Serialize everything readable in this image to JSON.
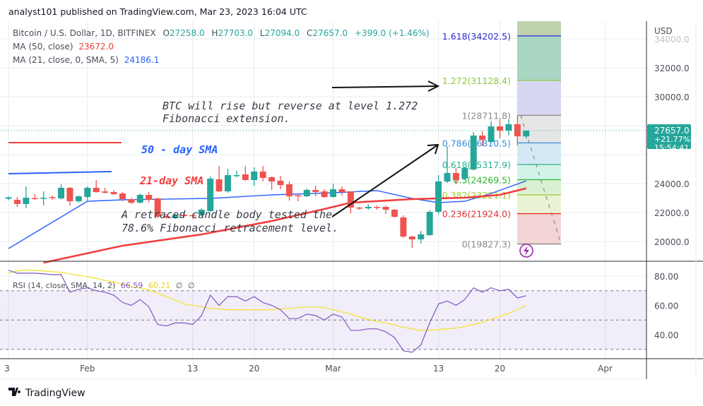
{
  "header": {
    "publisher": "analyst101 published on TradingView.com, Mar 23, 2023 16:04 UTC"
  },
  "legend": {
    "symbol": "Bitcoin / U.S. Dollar, 1D, BITFINEX",
    "o_label": "O",
    "o": "27258.0",
    "h_label": "H",
    "h": "27703.0",
    "l_label": "L",
    "l": "27094.0",
    "c_label": "C",
    "c": "27657.0",
    "change": "+399.0 (+1.46%)",
    "ma50_label": "MA (50, close)",
    "ma50_value": "23672.0",
    "ma21_label": "MA (21, close, 0, SMA, 5)",
    "ma21_value": "24186.1"
  },
  "price_axis": {
    "currency": "USD",
    "ticks": [
      "34000.0",
      "32000.0",
      "30000.0",
      "24000.0",
      "22000.0",
      "20000.0"
    ],
    "tick_values": [
      34000,
      32000,
      30000,
      24000,
      22000,
      20000
    ],
    "last_price": "27657.0",
    "last_change_pct": "+21.77%",
    "countdown": "15:54:41"
  },
  "time_axis": {
    "labels": [
      "3",
      "Feb",
      "13",
      "20",
      "Mar",
      "13",
      "20",
      "Apr"
    ],
    "label_dates": [
      "2023-01-23",
      "2023-02-01",
      "2023-02-13",
      "2023-02-20",
      "2023-03-01",
      "2023-03-13",
      "2023-03-20",
      "2023-04-01"
    ]
  },
  "rsi": {
    "label": "RSI (14, close, SMA, 14, 2)",
    "value": "66.59",
    "sma_value": "60.21",
    "na1": "∅",
    "na2": "∅",
    "ticks": [
      "80.00",
      "60.00",
      "40.00"
    ],
    "tick_values": [
      80,
      60,
      40
    ],
    "bands": [
      70,
      50,
      30
    ]
  },
  "fib": {
    "levels": [
      {
        "ratio": 1.618,
        "price": 34202.5,
        "label": "1.618(34202.5)",
        "color": "#2b2bd6"
      },
      {
        "ratio": 1.272,
        "price": 31128.4,
        "label": "1.272(31128.4)",
        "color": "#8cc63f"
      },
      {
        "ratio": 1,
        "price": 28711.8,
        "label": "1(28711.8)",
        "color": "#888888"
      },
      {
        "ratio": 0.786,
        "price": 26810.5,
        "label": "0.786(26810.5)",
        "color": "#3a8fd9"
      },
      {
        "ratio": 0.618,
        "price": 25317.9,
        "label": "0.618(25317.9)",
        "color": "#26b38e"
      },
      {
        "ratio": 0.5,
        "price": 24269.5,
        "label": "0.5(24269.5)",
        "color": "#2db82d"
      },
      {
        "ratio": 0.382,
        "price": 23221.1,
        "label": "0.382(23221.1)",
        "color": "#9acd32"
      },
      {
        "ratio": 0.236,
        "price": 21924.0,
        "label": "0.236(21924.0)",
        "color": "#e03131"
      },
      {
        "ratio": 0,
        "price": 19827.3,
        "label": "0(19827.3)",
        "color": "#888888"
      }
    ],
    "fills": [
      "#bfd3ae",
      "#a9d6c2",
      "#d6d6f3",
      "#e6e6e6",
      "#d3e8f3",
      "#d3f3e9",
      "#d9f0d3",
      "#e9f3d3",
      "#f3d5d5"
    ]
  },
  "annotations": {
    "btc_line1": "BTC will rise but reverse at level 1.272",
    "btc_line2": "Fibonacci extension.",
    "sma50": "50 - day SMA",
    "sma21": "21-day SMA",
    "retrace_line1": "A retraced candle body tested the",
    "retrace_line2": "78.6% Fibonacci retracement level."
  },
  "colors": {
    "up": "#26a69a",
    "down": "#ef5350",
    "ma50": "#f23d3d",
    "ma21": "#2962ff",
    "rsi": "#7e57c2",
    "rsi_sma": "#f5e33a",
    "lightning": "#9c27b0"
  },
  "footer": {
    "brand": "TradingView"
  },
  "chart_data": {
    "type": "candlestick",
    "dates": [
      "2023-01-23",
      "2023-01-24",
      "2023-01-25",
      "2023-01-26",
      "2023-01-27",
      "2023-01-28",
      "2023-01-29",
      "2023-01-30",
      "2023-01-31",
      "2023-02-01",
      "2023-02-02",
      "2023-02-03",
      "2023-02-04",
      "2023-02-05",
      "2023-02-06",
      "2023-02-07",
      "2023-02-08",
      "2023-02-09",
      "2023-02-10",
      "2023-02-11",
      "2023-02-12",
      "2023-02-13",
      "2023-02-14",
      "2023-02-15",
      "2023-02-16",
      "2023-02-17",
      "2023-02-18",
      "2023-02-19",
      "2023-02-20",
      "2023-02-21",
      "2023-02-22",
      "2023-02-23",
      "2023-02-24",
      "2023-02-25",
      "2023-02-26",
      "2023-02-27",
      "2023-02-28",
      "2023-03-01",
      "2023-03-02",
      "2023-03-03",
      "2023-03-04",
      "2023-03-05",
      "2023-03-06",
      "2023-03-07",
      "2023-03-08",
      "2023-03-09",
      "2023-03-10",
      "2023-03-11",
      "2023-03-12",
      "2023-03-13",
      "2023-03-14",
      "2023-03-15",
      "2023-03-16",
      "2023-03-17",
      "2023-03-18",
      "2023-03-19",
      "2023-03-20",
      "2023-03-21",
      "2023-03-22",
      "2023-03-23"
    ],
    "ohlc": [
      [
        22950,
        23100,
        22850,
        23050
      ],
      [
        22880,
        23070,
        22390,
        22590
      ],
      [
        22585,
        23805,
        22293,
        23024
      ],
      [
        23000,
        23268,
        22878,
        22950
      ],
      [
        22950,
        23463,
        22488,
        23020
      ],
      [
        23070,
        23170,
        22880,
        23020
      ],
      [
        22975,
        23950,
        22900,
        23707
      ],
      [
        23707,
        23756,
        22488,
        22780
      ],
      [
        22780,
        23170,
        22683,
        23122
      ],
      [
        23073,
        23805,
        22730,
        23707
      ],
      [
        23707,
        24244,
        23366,
        23415
      ],
      [
        23460,
        23707,
        23317,
        23370
      ],
      [
        23415,
        23560,
        23220,
        23270
      ],
      [
        23317,
        23415,
        22780,
        22927
      ],
      [
        22927,
        23024,
        22585,
        22683
      ],
      [
        22683,
        23317,
        22634,
        23220
      ],
      [
        23220,
        23415,
        22683,
        22878
      ],
      [
        22975,
        23024,
        21610,
        21707
      ],
      [
        21756,
        21853,
        21560,
        21660
      ],
      [
        21610,
        21900,
        21560,
        21805
      ],
      [
        21850,
        21950,
        21700,
        21756
      ],
      [
        21820,
        21900,
        21560,
        21780
      ],
      [
        21853,
        22293,
        21756,
        22195
      ],
      [
        22098,
        24488,
        22050,
        24341
      ],
      [
        24293,
        25220,
        23415,
        23463
      ],
      [
        23463,
        25024,
        23366,
        24585
      ],
      [
        24540,
        24878,
        24440,
        24585
      ],
      [
        24634,
        25220,
        24195,
        24244
      ],
      [
        24244,
        25122,
        23853,
        24830
      ],
      [
        24830,
        25220,
        24146,
        24390
      ],
      [
        24440,
        24490,
        23560,
        24146
      ],
      [
        24195,
        24537,
        23610,
        23900
      ],
      [
        23950,
        24146,
        22830,
        23122
      ],
      [
        23190,
        23220,
        22780,
        23150
      ],
      [
        23122,
        23660,
        23073,
        23560
      ],
      [
        23560,
        23853,
        23122,
        23415
      ],
      [
        23463,
        23610,
        23024,
        23073
      ],
      [
        23073,
        24000,
        23024,
        23610
      ],
      [
        23610,
        23805,
        23170,
        23415
      ],
      [
        23463,
        23463,
        21950,
        22341
      ],
      [
        22341,
        22390,
        22195,
        22300
      ],
      [
        22293,
        22585,
        22195,
        22390
      ],
      [
        22390,
        22488,
        22195,
        22340
      ],
      [
        22390,
        22488,
        21900,
        22195
      ],
      [
        22195,
        22244,
        21660,
        21707
      ],
      [
        21660,
        21805,
        20240,
        20340
      ],
      [
        20340,
        20390,
        19560,
        20146
      ],
      [
        20146,
        20730,
        19850,
        20490
      ],
      [
        20440,
        22146,
        20390,
        22050
      ],
      [
        22050,
        24585,
        21900,
        24146
      ],
      [
        24146,
        26585,
        24050,
        24730
      ],
      [
        24730,
        25073,
        23950,
        24244
      ],
      [
        24340,
        25170,
        24244,
        25073
      ],
      [
        24975,
        27560,
        24900,
        27317
      ],
      [
        27317,
        27610,
        26585,
        27024
      ],
      [
        26880,
        28340,
        26780,
        27950
      ],
      [
        27950,
        28440,
        27120,
        27660
      ],
      [
        27660,
        28390,
        27320,
        28100
      ],
      [
        28100,
        28711,
        26630,
        27270
      ],
      [
        27258,
        27703,
        27094,
        27657
      ]
    ],
    "ma50": [
      [
        "2023-01-27",
        18536
      ],
      [
        "2023-02-05",
        19707
      ],
      [
        "2023-02-14",
        20488
      ],
      [
        "2023-02-22",
        21415
      ],
      [
        "2023-02-28",
        22244
      ],
      [
        "2023-03-03",
        22683
      ],
      [
        "2023-03-10",
        22927
      ],
      [
        "2023-03-16",
        23024
      ],
      [
        "2023-03-20",
        23220
      ],
      [
        "2023-03-23",
        23672
      ]
    ],
    "ma21": [
      [
        "2023-01-23",
        19512
      ],
      [
        "2023-02-01",
        22780
      ],
      [
        "2023-02-05",
        22878
      ],
      [
        "2023-02-15",
        22975
      ],
      [
        "2023-02-22",
        23220
      ],
      [
        "2023-03-01",
        23366
      ],
      [
        "2023-03-06",
        23512
      ],
      [
        "2023-03-10",
        22975
      ],
      [
        "2023-03-13",
        22683
      ],
      [
        "2023-03-16",
        22780
      ],
      [
        "2023-03-19",
        23317
      ],
      [
        "2023-03-23",
        24186
      ]
    ],
    "rsi_values": [
      84,
      82,
      82,
      82,
      81.5,
      81,
      81,
      69,
      71,
      72,
      70,
      69,
      67,
      62,
      60,
      64,
      59,
      47,
      46,
      48,
      48,
      47,
      53,
      67,
      60,
      66,
      66,
      63,
      66,
      62,
      60,
      57,
      51,
      51,
      54,
      53,
      50,
      54,
      52,
      43,
      43,
      44,
      44,
      42,
      38,
      29,
      28,
      33,
      48,
      61,
      63,
      60,
      64,
      72,
      69,
      72,
      70,
      71,
      65,
      66.59
    ],
    "rsi_sma_values": [
      82,
      83.5,
      84,
      84,
      83.5,
      83,
      82.5,
      81.5,
      80.5,
      79.5,
      78.5,
      77,
      76,
      74.5,
      73,
      72,
      70.5,
      68.5,
      66,
      63.5,
      61,
      60,
      59,
      58,
      57.5,
      57,
      57,
      57,
      57,
      57,
      57,
      57.5,
      58,
      58.5,
      59,
      59,
      58.5,
      57,
      55.5,
      54,
      52,
      50.5,
      49,
      48,
      46.5,
      45,
      44,
      43,
      43,
      43.5,
      44,
      44.5,
      45.5,
      47,
      48.5,
      50.5,
      52.5,
      54.5,
      57,
      60.21
    ],
    "price_ylim": [
      19000,
      35000
    ],
    "rsi_ylim": [
      24,
      88
    ],
    "grid": true
  }
}
